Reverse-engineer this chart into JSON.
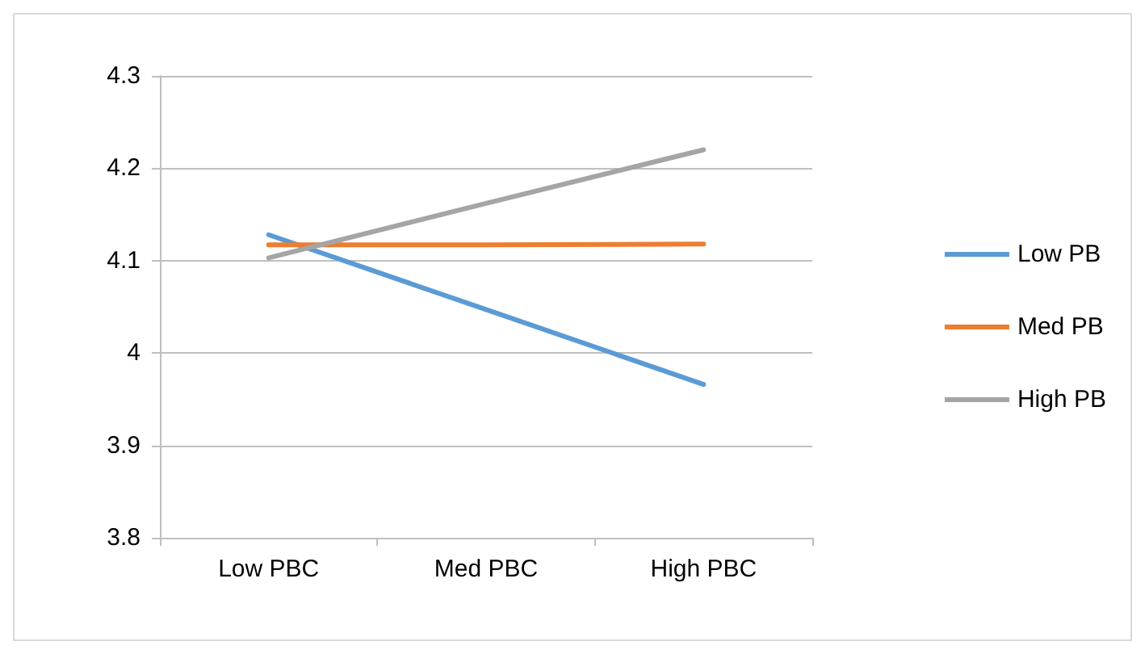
{
  "chart_data": {
    "type": "line",
    "categories": [
      "Low PBC",
      "Med PBC",
      "High PBC"
    ],
    "series": [
      {
        "name": "Low PB",
        "color": "#5b9bd5",
        "values": [
          4.128,
          4.047,
          3.966
        ]
      },
      {
        "name": "Med PB",
        "color": "#ed7d31",
        "values": [
          4.117,
          4.117,
          4.118
        ]
      },
      {
        "name": "High PB",
        "color": "#a5a5a5",
        "values": [
          4.103,
          4.162,
          4.22
        ]
      }
    ],
    "ylim": [
      3.8,
      4.3
    ],
    "yticks": [
      3.8,
      3.9,
      4,
      4.1,
      4.2,
      4.3
    ],
    "grid": "y",
    "legend": "right",
    "marker": "none",
    "line_style": "solid"
  }
}
